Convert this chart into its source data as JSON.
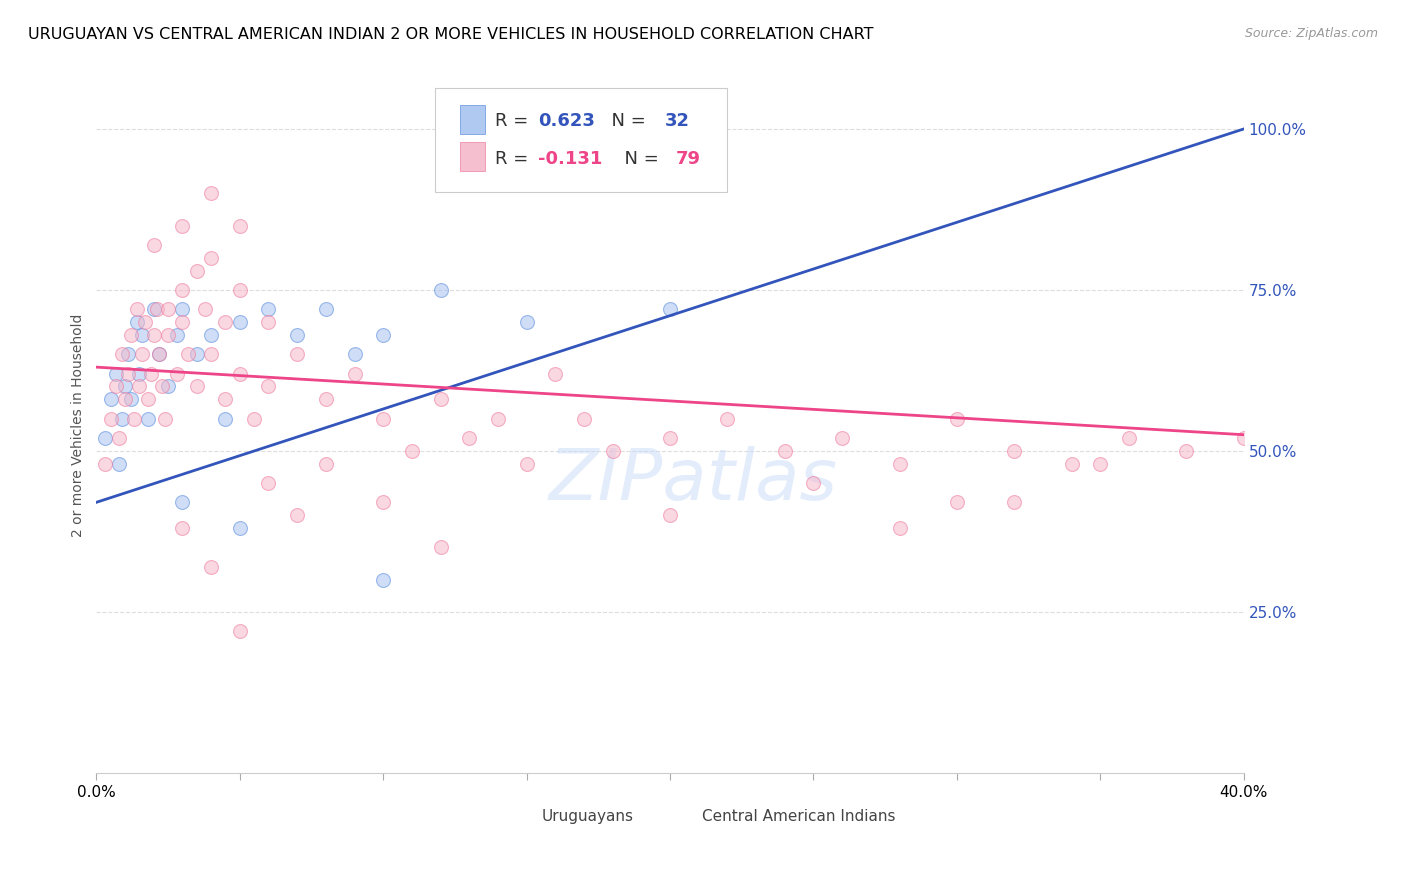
{
  "title": "URUGUAYAN VS CENTRAL AMERICAN INDIAN 2 OR MORE VEHICLES IN HOUSEHOLD CORRELATION CHART",
  "source": "Source: ZipAtlas.com",
  "ylabel": "2 or more Vehicles in Household",
  "xmin": 0.0,
  "xmax": 40.0,
  "ymin": 0.0,
  "ymax": 108.0,
  "yticks": [
    25,
    50,
    75,
    100
  ],
  "ytick_labels": [
    "25.0%",
    "50.0%",
    "75.0%",
    "100.0%"
  ],
  "xticks": [
    0,
    5,
    10,
    15,
    20,
    25,
    30,
    35,
    40
  ],
  "legend_blue_r": "0.623",
  "legend_blue_n": "32",
  "legend_pink_r": "-0.131",
  "legend_pink_n": "79",
  "blue_color": "#a8c4f0",
  "pink_color": "#f5b8cb",
  "blue_edge_color": "#5588dd",
  "pink_edge_color": "#ee7799",
  "blue_line_color": "#3355bb",
  "pink_line_color": "#ee4488",
  "blue_scatter": [
    [
      0.3,
      52
    ],
    [
      0.5,
      58
    ],
    [
      0.7,
      62
    ],
    [
      0.8,
      48
    ],
    [
      0.9,
      55
    ],
    [
      1.0,
      60
    ],
    [
      1.1,
      65
    ],
    [
      1.2,
      58
    ],
    [
      1.4,
      70
    ],
    [
      1.5,
      62
    ],
    [
      1.6,
      68
    ],
    [
      1.8,
      55
    ],
    [
      2.0,
      72
    ],
    [
      2.2,
      65
    ],
    [
      2.5,
      60
    ],
    [
      2.8,
      68
    ],
    [
      3.0,
      72
    ],
    [
      3.5,
      65
    ],
    [
      4.0,
      68
    ],
    [
      4.5,
      55
    ],
    [
      5.0,
      70
    ],
    [
      6.0,
      72
    ],
    [
      7.0,
      68
    ],
    [
      8.0,
      72
    ],
    [
      9.0,
      65
    ],
    [
      10.0,
      68
    ],
    [
      12.0,
      75
    ],
    [
      15.0,
      70
    ],
    [
      20.0,
      72
    ],
    [
      3.0,
      42
    ],
    [
      5.0,
      38
    ],
    [
      10.0,
      30
    ]
  ],
  "pink_scatter": [
    [
      0.3,
      48
    ],
    [
      0.5,
      55
    ],
    [
      0.7,
      60
    ],
    [
      0.8,
      52
    ],
    [
      0.9,
      65
    ],
    [
      1.0,
      58
    ],
    [
      1.1,
      62
    ],
    [
      1.2,
      68
    ],
    [
      1.3,
      55
    ],
    [
      1.4,
      72
    ],
    [
      1.5,
      60
    ],
    [
      1.6,
      65
    ],
    [
      1.7,
      70
    ],
    [
      1.8,
      58
    ],
    [
      1.9,
      62
    ],
    [
      2.0,
      68
    ],
    [
      2.1,
      72
    ],
    [
      2.2,
      65
    ],
    [
      2.3,
      60
    ],
    [
      2.4,
      55
    ],
    [
      2.5,
      68
    ],
    [
      2.8,
      62
    ],
    [
      3.0,
      70
    ],
    [
      3.2,
      65
    ],
    [
      3.5,
      60
    ],
    [
      3.8,
      72
    ],
    [
      4.0,
      65
    ],
    [
      4.5,
      58
    ],
    [
      5.0,
      62
    ],
    [
      5.5,
      55
    ],
    [
      6.0,
      60
    ],
    [
      7.0,
      65
    ],
    [
      8.0,
      58
    ],
    [
      9.0,
      62
    ],
    [
      10.0,
      55
    ],
    [
      11.0,
      50
    ],
    [
      12.0,
      58
    ],
    [
      13.0,
      52
    ],
    [
      14.0,
      55
    ],
    [
      15.0,
      48
    ],
    [
      16.0,
      62
    ],
    [
      17.0,
      55
    ],
    [
      18.0,
      50
    ],
    [
      20.0,
      52
    ],
    [
      22.0,
      55
    ],
    [
      24.0,
      50
    ],
    [
      26.0,
      52
    ],
    [
      28.0,
      48
    ],
    [
      30.0,
      55
    ],
    [
      32.0,
      50
    ],
    [
      34.0,
      48
    ],
    [
      36.0,
      52
    ],
    [
      38.0,
      50
    ],
    [
      40.0,
      52
    ],
    [
      2.0,
      82
    ],
    [
      3.0,
      85
    ],
    [
      3.5,
      78
    ],
    [
      4.0,
      80
    ],
    [
      2.5,
      72
    ],
    [
      3.0,
      75
    ],
    [
      4.5,
      70
    ],
    [
      5.0,
      75
    ],
    [
      6.0,
      70
    ],
    [
      4.0,
      90
    ],
    [
      5.0,
      85
    ],
    [
      3.0,
      38
    ],
    [
      4.0,
      32
    ],
    [
      6.0,
      45
    ],
    [
      7.0,
      40
    ],
    [
      5.0,
      22
    ],
    [
      8.0,
      48
    ],
    [
      10.0,
      42
    ],
    [
      12.0,
      35
    ],
    [
      20.0,
      40
    ],
    [
      25.0,
      45
    ],
    [
      30.0,
      42
    ],
    [
      35.0,
      48
    ],
    [
      28.0,
      38
    ],
    [
      32.0,
      42
    ]
  ],
  "blue_trend_x0": 0.0,
  "blue_trend_x1": 40.0,
  "blue_trend_y0": 42.0,
  "blue_trend_y1": 100.0,
  "pink_trend_x0": 0.0,
  "pink_trend_x1": 40.0,
  "pink_trend_y0": 63.0,
  "pink_trend_y1": 52.5,
  "background_color": "#ffffff",
  "grid_color": "#dddddd",
  "title_fontsize": 11.5,
  "label_fontsize": 10,
  "tick_fontsize": 11,
  "marker_size": 100,
  "marker_alpha": 0.55,
  "axis_label_color": "#3355bb",
  "watermark_text": "ZIPatlas",
  "watermark_color": "#c8daf8",
  "watermark_alpha": 0.5
}
